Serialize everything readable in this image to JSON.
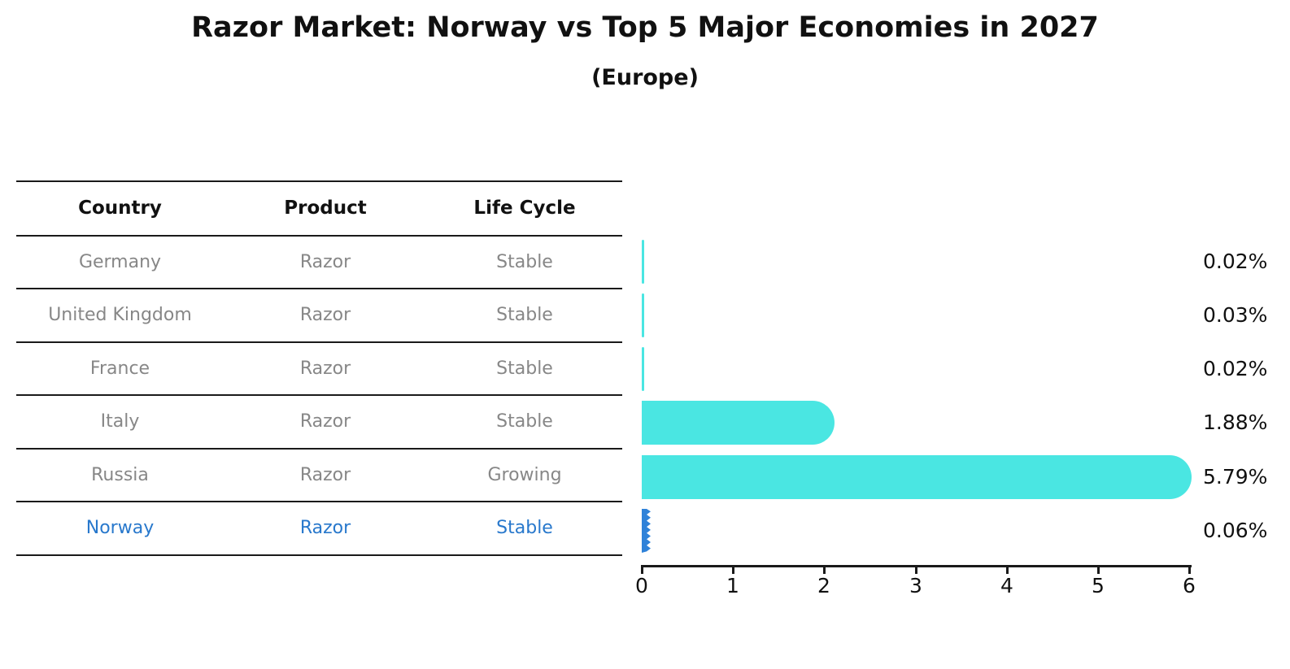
{
  "chart_data": {
    "type": "bar",
    "orientation": "horizontal",
    "title": "Razor Market: Norway vs Top 5 Major Economies in 2027",
    "subtitle": "(Europe)",
    "xlabel": "",
    "ylabel": "",
    "xlim": [
      0,
      6
    ],
    "x_ticks": [
      0,
      1,
      2,
      3,
      4,
      5,
      6
    ],
    "grid": false,
    "value_unit": "%",
    "rows": [
      {
        "country": "Germany",
        "product": "Razor",
        "life_cycle": "Stable",
        "value": 0.02,
        "label": "0.02%",
        "highlight": false
      },
      {
        "country": "United Kingdom",
        "product": "Razor",
        "life_cycle": "Stable",
        "value": 0.03,
        "label": "0.03%",
        "highlight": false
      },
      {
        "country": "France",
        "product": "Razor",
        "life_cycle": "Stable",
        "value": 0.02,
        "label": "0.02%",
        "highlight": false
      },
      {
        "country": "Italy",
        "product": "Razor",
        "life_cycle": "Stable",
        "value": 1.88,
        "label": "1.88%",
        "highlight": false
      },
      {
        "country": "Russia",
        "product": "Razor",
        "life_cycle": "Growing",
        "value": 5.79,
        "label": "5.79%",
        "highlight": false
      },
      {
        "country": "Norway",
        "product": "Razor",
        "life_cycle": "Stable",
        "value": 0.06,
        "label": "0.06%",
        "highlight": true
      }
    ],
    "colors": {
      "bar": "#4AE6E2",
      "highlight_bar": "#2F82D9",
      "highlight_text": "#2878CC",
      "row_text": "#878787",
      "header_text": "#111111",
      "axis": "#1a1a1a"
    },
    "legend": null
  },
  "table": {
    "headers": [
      "Country",
      "Product",
      "Life Cycle"
    ]
  }
}
